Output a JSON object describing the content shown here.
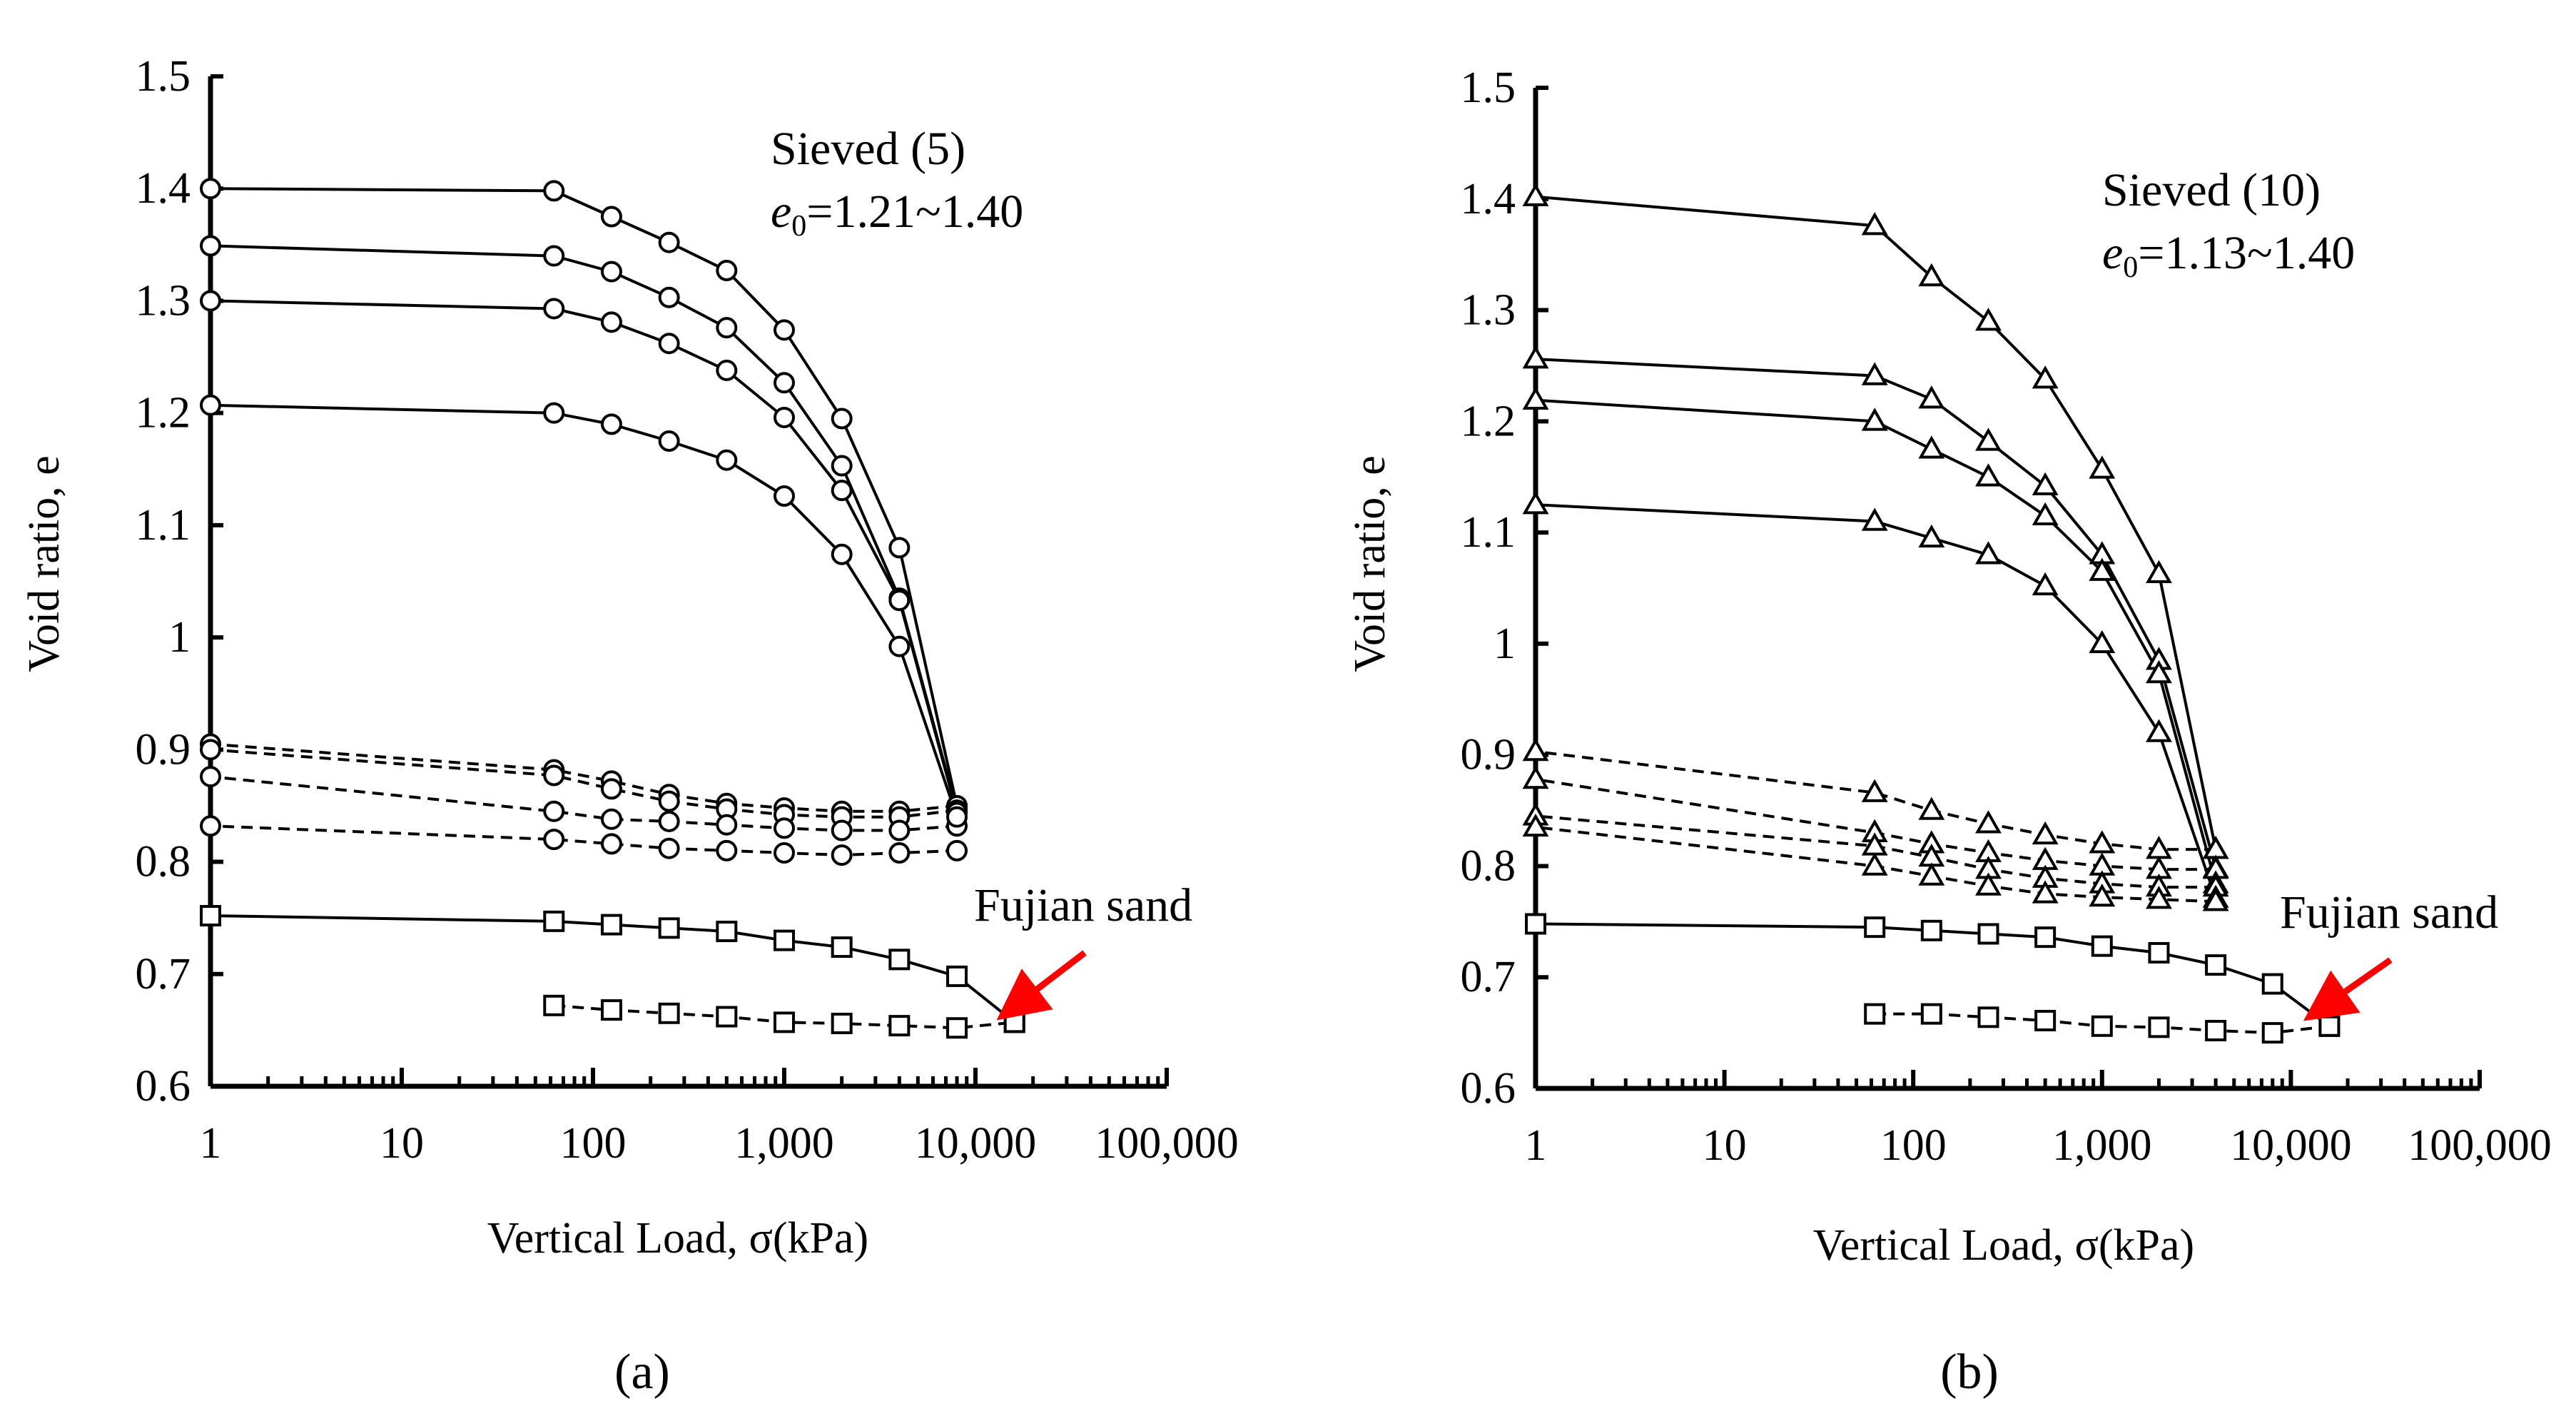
{
  "chart_data": [
    {
      "panel_label": "(a)",
      "type": "line",
      "x_scale": "log",
      "xlim": [
        1,
        100000
      ],
      "ylim": [
        0.6,
        1.5
      ],
      "xlabel": "Vertical Load, σ(kPa)",
      "ylabel": "Void ratio, e",
      "x_tick_labels": [
        "1",
        "10",
        "100",
        "1,000",
        "10,000",
        "100,000"
      ],
      "y_tick_labels": [
        "0.6",
        "0.7",
        "0.8",
        "0.9",
        "1",
        "1.1",
        "1.2",
        "1.3",
        "1.4",
        "1.5"
      ],
      "annotation_title": "Sieved (5)",
      "annotation_range_var": "e",
      "annotation_range_sub": "0",
      "annotation_range_value": "=1.21~1.40",
      "arrow_label": "Fujian sand",
      "marker": "circle",
      "series": [
        {
          "style": "solid",
          "points": [
            [
              1,
              1.4
            ],
            [
              62.5,
              1.398
            ],
            [
              125,
              1.375
            ],
            [
              250,
              1.352
            ],
            [
              500,
              1.327
            ],
            [
              1000,
              1.274
            ],
            [
              2000,
              1.195
            ],
            [
              4000,
              1.08
            ],
            [
              8000,
              0.85
            ]
          ]
        },
        {
          "style": "dashed",
          "points": [
            [
              8000,
              0.85
            ],
            [
              4000,
              0.845
            ],
            [
              2000,
              0.845
            ],
            [
              1000,
              0.848
            ],
            [
              500,
              0.852
            ],
            [
              250,
              0.86
            ],
            [
              125,
              0.872
            ],
            [
              62.5,
              0.882
            ],
            [
              1,
              0.905
            ]
          ]
        },
        {
          "style": "solid",
          "points": [
            [
              1,
              1.349
            ],
            [
              62.5,
              1.34
            ],
            [
              125,
              1.326
            ],
            [
              250,
              1.303
            ],
            [
              500,
              1.276
            ],
            [
              1000,
              1.227
            ],
            [
              2000,
              1.153
            ],
            [
              4000,
              1.035
            ],
            [
              8000,
              0.846
            ]
          ]
        },
        {
          "style": "dashed",
          "points": [
            [
              8000,
              0.846
            ],
            [
              4000,
              0.84
            ],
            [
              2000,
              0.84
            ],
            [
              1000,
              0.842
            ],
            [
              500,
              0.847
            ],
            [
              250,
              0.854
            ],
            [
              125,
              0.865
            ],
            [
              62.5,
              0.877
            ],
            [
              1,
              0.9
            ]
          ]
        },
        {
          "style": "solid",
          "points": [
            [
              1,
              1.3
            ],
            [
              62.5,
              1.293
            ],
            [
              125,
              1.281
            ],
            [
              250,
              1.262
            ],
            [
              500,
              1.238
            ],
            [
              1000,
              1.196
            ],
            [
              2000,
              1.131
            ],
            [
              4000,
              1.033
            ],
            [
              8000,
              0.844
            ]
          ]
        },
        {
          "style": "dashed",
          "points": [
            [
              8000,
              0.832
            ],
            [
              4000,
              0.828
            ],
            [
              2000,
              0.828
            ],
            [
              1000,
              0.83
            ],
            [
              500,
              0.833
            ],
            [
              250,
              0.836
            ],
            [
              125,
              0.838
            ],
            [
              62.5,
              0.845
            ],
            [
              1,
              0.876
            ]
          ]
        },
        {
          "style": "solid",
          "points": [
            [
              1,
              1.207
            ],
            [
              62.5,
              1.2
            ],
            [
              125,
              1.19
            ],
            [
              250,
              1.175
            ],
            [
              500,
              1.158
            ],
            [
              1000,
              1.126
            ],
            [
              2000,
              1.074
            ],
            [
              4000,
              0.992
            ],
            [
              8000,
              0.84
            ]
          ]
        },
        {
          "style": "dashed",
          "points": [
            [
              8000,
              0.81
            ],
            [
              4000,
              0.808
            ],
            [
              2000,
              0.806
            ],
            [
              1000,
              0.808
            ],
            [
              500,
              0.81
            ],
            [
              250,
              0.812
            ],
            [
              125,
              0.816
            ],
            [
              62.5,
              0.82
            ],
            [
              1,
              0.832
            ]
          ]
        }
      ],
      "fujian_sand": {
        "marker": "square",
        "series": [
          {
            "style": "solid",
            "points": [
              [
                1,
                0.752
              ],
              [
                62.5,
                0.747
              ],
              [
                125,
                0.744
              ],
              [
                250,
                0.741
              ],
              [
                500,
                0.738
              ],
              [
                1000,
                0.73
              ],
              [
                2000,
                0.724
              ],
              [
                4000,
                0.713
              ],
              [
                8000,
                0.698
              ],
              [
                16000,
                0.657
              ]
            ]
          },
          {
            "style": "dashed",
            "points": [
              [
                62.5,
                0.672
              ],
              [
                125,
                0.668
              ],
              [
                250,
                0.665
              ],
              [
                500,
                0.662
              ],
              [
                1000,
                0.657
              ],
              [
                2000,
                0.656
              ],
              [
                4000,
                0.654
              ],
              [
                8000,
                0.652
              ],
              [
                16000,
                0.657
              ]
            ]
          }
        ]
      }
    },
    {
      "panel_label": "(b)",
      "type": "line",
      "x_scale": "log",
      "xlim": [
        1,
        100000
      ],
      "ylim": [
        0.6,
        1.5
      ],
      "xlabel": "Vertical Load, σ(kPa)",
      "ylabel": "Void ratio, e",
      "x_tick_labels": [
        "1",
        "10",
        "100",
        "1,000",
        "10,000",
        "100,000"
      ],
      "y_tick_labels": [
        "0.6",
        "0.7",
        "0.8",
        "0.9",
        "1",
        "1.1",
        "1.2",
        "1.3",
        "1.4",
        "1.5"
      ],
      "annotation_title": "Sieved (10)",
      "annotation_range_var": "e",
      "annotation_range_sub": "0",
      "annotation_range_value": "=1.13~1.40",
      "arrow_label": "Fujian sand",
      "marker": "triangle",
      "series": [
        {
          "style": "solid",
          "points": [
            [
              1,
              1.402
            ],
            [
              62.5,
              1.376
            ],
            [
              125,
              1.33
            ],
            [
              250,
              1.29
            ],
            [
              500,
              1.238
            ],
            [
              1000,
              1.157
            ],
            [
              2000,
              1.063
            ],
            [
              4000,
              0.815
            ]
          ]
        },
        {
          "style": "dashed",
          "points": [
            [
              4000,
              0.815
            ],
            [
              2000,
              0.815
            ],
            [
              1000,
              0.82
            ],
            [
              500,
              0.828
            ],
            [
              250,
              0.838
            ],
            [
              125,
              0.85
            ],
            [
              62.5,
              0.866
            ],
            [
              1,
              0.903
            ]
          ]
        },
        {
          "style": "solid",
          "points": [
            [
              1,
              1.256
            ],
            [
              62.5,
              1.241
            ],
            [
              125,
              1.22
            ],
            [
              250,
              1.182
            ],
            [
              500,
              1.142
            ],
            [
              1000,
              1.08
            ],
            [
              2000,
              0.985
            ],
            [
              4000,
              0.798
            ]
          ]
        },
        {
          "style": "dashed",
          "points": [
            [
              4000,
              0.797
            ],
            [
              2000,
              0.797
            ],
            [
              1000,
              0.8
            ],
            [
              500,
              0.805
            ],
            [
              250,
              0.812
            ],
            [
              125,
              0.82
            ],
            [
              62.5,
              0.83
            ],
            [
              1,
              0.878
            ]
          ]
        },
        {
          "style": "solid",
          "points": [
            [
              1,
              1.219
            ],
            [
              62.5,
              1.2
            ],
            [
              125,
              1.175
            ],
            [
              250,
              1.15
            ],
            [
              500,
              1.115
            ],
            [
              1000,
              1.065
            ],
            [
              2000,
              0.973
            ],
            [
              4000,
              0.784
            ]
          ]
        },
        {
          "style": "dashed",
          "points": [
            [
              4000,
              0.781
            ],
            [
              2000,
              0.781
            ],
            [
              1000,
              0.784
            ],
            [
              500,
              0.789
            ],
            [
              250,
              0.797
            ],
            [
              125,
              0.808
            ],
            [
              62.5,
              0.818
            ],
            [
              1,
              0.845
            ]
          ]
        },
        {
          "style": "solid",
          "points": [
            [
              1,
              1.125
            ],
            [
              62.5,
              1.11
            ],
            [
              125,
              1.095
            ],
            [
              250,
              1.08
            ],
            [
              500,
              1.052
            ],
            [
              1000,
              1.0
            ],
            [
              2000,
              0.92
            ],
            [
              4000,
              0.771
            ]
          ]
        },
        {
          "style": "dashed",
          "points": [
            [
              4000,
              0.768
            ],
            [
              2000,
              0.77
            ],
            [
              1000,
              0.772
            ],
            [
              500,
              0.775
            ],
            [
              250,
              0.782
            ],
            [
              125,
              0.791
            ],
            [
              62.5,
              0.8
            ],
            [
              1,
              0.835
            ]
          ]
        }
      ],
      "fujian_sand": {
        "marker": "square",
        "series": [
          {
            "style": "solid",
            "points": [
              [
                1,
                0.748
              ],
              [
                62.5,
                0.745
              ],
              [
                125,
                0.742
              ],
              [
                250,
                0.739
              ],
              [
                500,
                0.736
              ],
              [
                1000,
                0.728
              ],
              [
                2000,
                0.722
              ],
              [
                4000,
                0.711
              ],
              [
                8000,
                0.694
              ],
              [
                16000,
                0.656
              ]
            ]
          },
          {
            "style": "dashed",
            "points": [
              [
                62.5,
                0.667
              ],
              [
                125,
                0.667
              ],
              [
                250,
                0.664
              ],
              [
                500,
                0.661
              ],
              [
                1000,
                0.656
              ],
              [
                2000,
                0.655
              ],
              [
                4000,
                0.652
              ],
              [
                8000,
                0.65
              ],
              [
                16000,
                0.656
              ]
            ]
          }
        ]
      }
    }
  ]
}
